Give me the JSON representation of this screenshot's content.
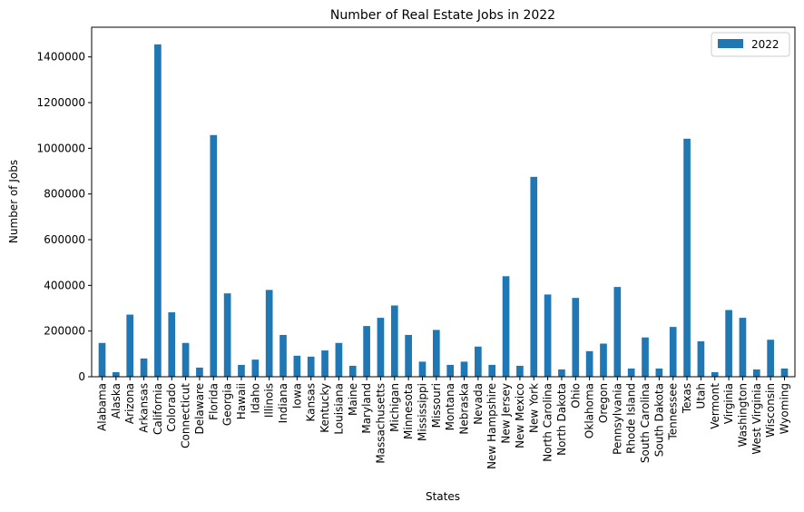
{
  "chart_data": {
    "type": "bar",
    "title": "Number of Real Estate Jobs in 2022",
    "xlabel": "States",
    "ylabel": "Number of Jobs",
    "ylim": [
      0,
      1530000
    ],
    "yticks": [
      0,
      200000,
      400000,
      600000,
      800000,
      1000000,
      1200000,
      1400000
    ],
    "grid": false,
    "legend": "top-right",
    "bar_color": "#1f77b4",
    "categories": [
      "Alabama",
      "Alaska",
      "Arizona",
      "Arkansas",
      "California",
      "Colorado",
      "Connecticut",
      "Delaware",
      "Florida",
      "Georgia",
      "Hawaii",
      "Idaho",
      "Illinois",
      "Indiana",
      "Iowa",
      "Kansas",
      "Kentucky",
      "Louisiana",
      "Maine",
      "Maryland",
      "Massachusetts",
      "Michigan",
      "Minnesota",
      "Mississippi",
      "Missouri",
      "Montana",
      "Nebraska",
      "Nevada",
      "New Hampshire",
      "New Jersey",
      "New Mexico",
      "New York",
      "North Carolina",
      "North Dakota",
      "Ohio",
      "Oklahoma",
      "Oregon",
      "Pennsylvania",
      "Rhode Island",
      "South Carolina",
      "South Dakota",
      "Tennessee",
      "Texas",
      "Utah",
      "Vermont",
      "Virginia",
      "Washington",
      "West Virginia",
      "Wisconsin",
      "Wyoming"
    ],
    "series": [
      {
        "name": "2022",
        "values": [
          148000,
          20000,
          272000,
          80000,
          1455000,
          282000,
          148000,
          40000,
          1058000,
          365000,
          52000,
          75000,
          380000,
          183000,
          92000,
          88000,
          115000,
          148000,
          48000,
          222000,
          258000,
          312000,
          183000,
          66000,
          205000,
          52000,
          66000,
          132000,
          52000,
          440000,
          48000,
          875000,
          360000,
          32000,
          345000,
          112000,
          145000,
          393000,
          36000,
          172000,
          36000,
          218000,
          1042000,
          155000,
          20000,
          292000,
          258000,
          32000,
          162000,
          36000
        ]
      }
    ]
  }
}
